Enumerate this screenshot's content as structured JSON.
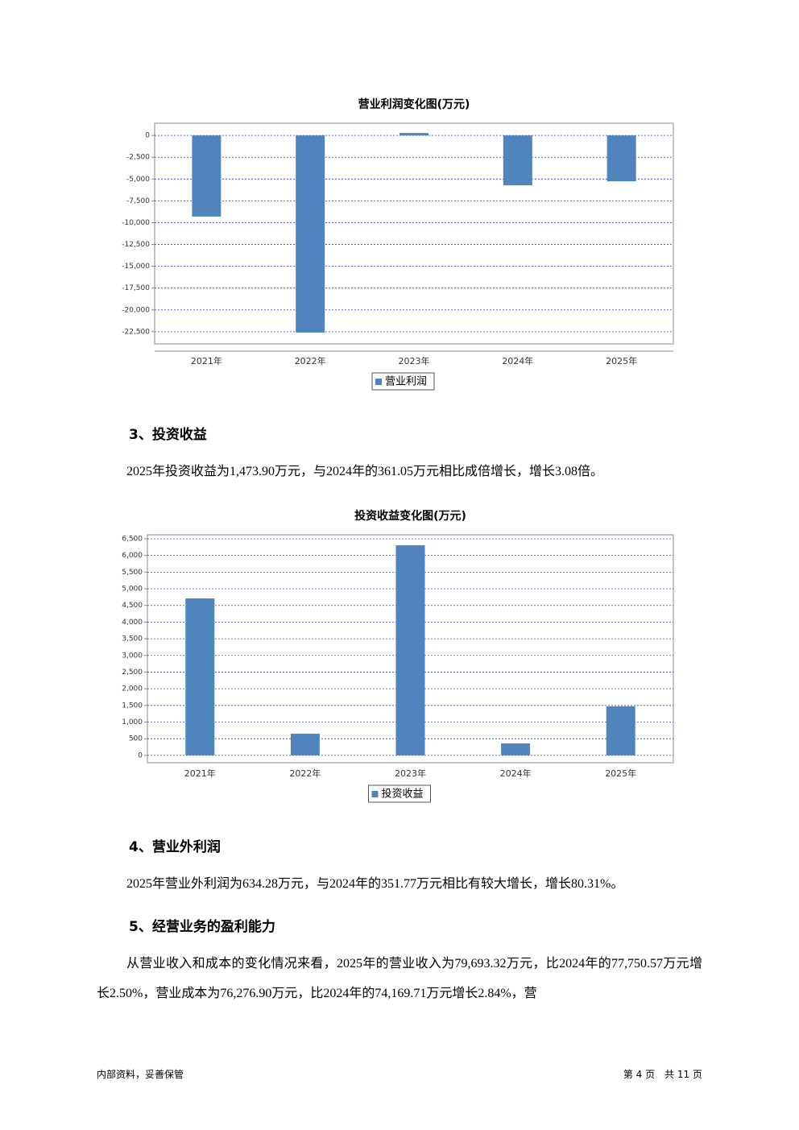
{
  "chart_data": [
    {
      "type": "bar",
      "title": "营业利润变化图(万元)",
      "categories": [
        "2021年",
        "2022年",
        "2023年",
        "2024年",
        "2025年"
      ],
      "series": [
        {
          "name": "营业利润",
          "color": "#5084bd",
          "values": [
            -9300,
            -22600,
            280,
            -5720,
            -5260
          ]
        }
      ],
      "ylim": [
        -23900,
        1400
      ],
      "yticks": [
        0,
        {
          "value": -2500,
          "label": "-2,500"
        },
        {
          "value": -5000,
          "label": "-5,000"
        },
        {
          "value": -7500,
          "label": "-7,500"
        },
        {
          "value": -10000,
          "label": "-10,000"
        },
        {
          "value": -12500,
          "label": "-12,500"
        },
        {
          "value": -15000,
          "label": "-15,000"
        },
        {
          "value": -17500,
          "label": "-17,500"
        },
        {
          "value": -20000,
          "label": "-20,000"
        },
        {
          "value": -22500,
          "label": "-22,500"
        }
      ],
      "grid": true
    },
    {
      "type": "bar",
      "title": "投资收益变化图(万元)",
      "categories": [
        "2021年",
        "2022年",
        "2023年",
        "2024年",
        "2025年"
      ],
      "series": [
        {
          "name": "投资收益",
          "color": "#5084bd",
          "values": [
            4710,
            652,
            6307,
            361.05,
            1473.9
          ]
        }
      ],
      "ylim": [
        -220,
        6620
      ],
      "yticks": [
        0,
        500,
        {
          "value": 1000,
          "label": "1,000"
        },
        {
          "value": 1500,
          "label": "1,500"
        },
        {
          "value": 2000,
          "label": "2,000"
        },
        {
          "value": 2500,
          "label": "2,500"
        },
        {
          "value": 3000,
          "label": "3,000"
        },
        {
          "value": 3500,
          "label": "3,500"
        },
        {
          "value": 4000,
          "label": "4,000"
        },
        {
          "value": 4500,
          "label": "4,500"
        },
        {
          "value": 5000,
          "label": "5,000"
        },
        {
          "value": 5500,
          "label": "5,500"
        },
        {
          "value": 6000,
          "label": "6,000"
        },
        {
          "value": 6500,
          "label": "6,500"
        }
      ],
      "grid": true
    }
  ],
  "sections": [
    {
      "heading": "3、投资收益",
      "paragraph": "2025年投资收益为1,473.90万元，与2024年的361.05万元相比成倍增长，增长3.08倍。"
    },
    {
      "heading": "4、营业外利润",
      "paragraph": "2025年营业外利润为634.28万元，与2024年的351.77万元相比有较大增长，增长80.31%。"
    },
    {
      "heading": "5、经营业务的盈利能力",
      "paragraph": "从营业收入和成本的变化情况来看，2025年的营业收入为79,693.32万元，比2024年的77,750.57万元增长2.50%，营业成本为76,276.90万元，比2024年的74,169.71万元增长2.84%，营"
    }
  ],
  "footer": {
    "left": "内部资料，妥善保管",
    "right": "第 4 页　共 11 页"
  }
}
